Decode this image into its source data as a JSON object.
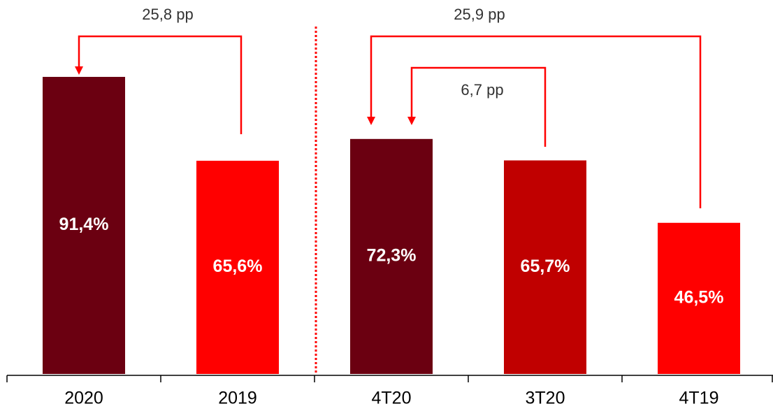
{
  "chart_data": {
    "type": "bar",
    "categories": [
      "2020",
      "2019",
      "4T20",
      "3T20",
      "4T19"
    ],
    "values": [
      91.4,
      65.6,
      72.3,
      65.7,
      46.5
    ],
    "value_labels": [
      "91,4%",
      "65,6%",
      "72,3%",
      "65,7%",
      "46,5%"
    ],
    "colors": [
      "#6b0011",
      "#ff0000",
      "#6b0011",
      "#c00000",
      "#ff0000"
    ],
    "ylim": [
      0,
      100
    ],
    "annotations": [
      "25,8 pp",
      "25,9 pp",
      "6,7 pp"
    ]
  }
}
